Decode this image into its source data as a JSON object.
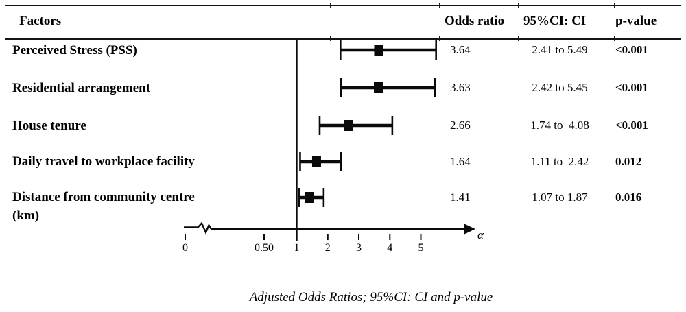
{
  "figure": {
    "header": {
      "factors": "Factors",
      "odds_ratio": "Odds ratio",
      "ci": "95%CI: CI",
      "p_value": "p-value"
    },
    "caption": "Adjusted Odds Ratios; 95%CI: CI and p-value"
  },
  "chart_data": {
    "type": "forest",
    "title": "Adjusted Odds Ratios; 95%CI: CI and p-value",
    "xlabel": "α",
    "reference_line": 1,
    "x_axis": {
      "tick_labels": [
        "0",
        "0.50",
        "1",
        "2",
        "3",
        "4",
        "5"
      ],
      "tick_values": [
        0,
        0.5,
        1,
        2,
        3,
        4,
        5
      ],
      "broken_axis": true,
      "arrow_label": "α"
    },
    "legend_position": "none",
    "grid": false,
    "rows": [
      {
        "factor": "Perceived Stress (PSS)",
        "factor_line2": "",
        "or": 3.64,
        "or_text": "3.64",
        "ci_low": 2.41,
        "ci_high": 5.49,
        "ci_text": "2.41 to 5.49",
        "p_text": "<0.001"
      },
      {
        "factor": "Residential arrangement",
        "factor_line2": "",
        "or": 3.63,
        "or_text": "3.63",
        "ci_low": 2.42,
        "ci_high": 5.45,
        "ci_text": "2.42 to 5.45",
        "p_text": "<0.001"
      },
      {
        "factor": "House tenure",
        "factor_line2": "",
        "or": 2.66,
        "or_text": "2.66",
        "ci_low": 1.74,
        "ci_high": 4.08,
        "ci_text": "1.74 to  4.08",
        "p_text": "<0.001"
      },
      {
        "factor": "Daily travel to workplace facility",
        "factor_line2": "",
        "or": 1.64,
        "or_text": "1.64",
        "ci_low": 1.11,
        "ci_high": 2.42,
        "ci_text": "1.11 to  2.42",
        "p_text": "0.012"
      },
      {
        "factor": "Distance from community centre",
        "factor_line2": "(km)",
        "or": 1.41,
        "or_text": "1.41",
        "ci_low": 1.07,
        "ci_high": 1.87,
        "ci_text": "1.07 to 1.87",
        "p_text": "0.016"
      }
    ]
  }
}
